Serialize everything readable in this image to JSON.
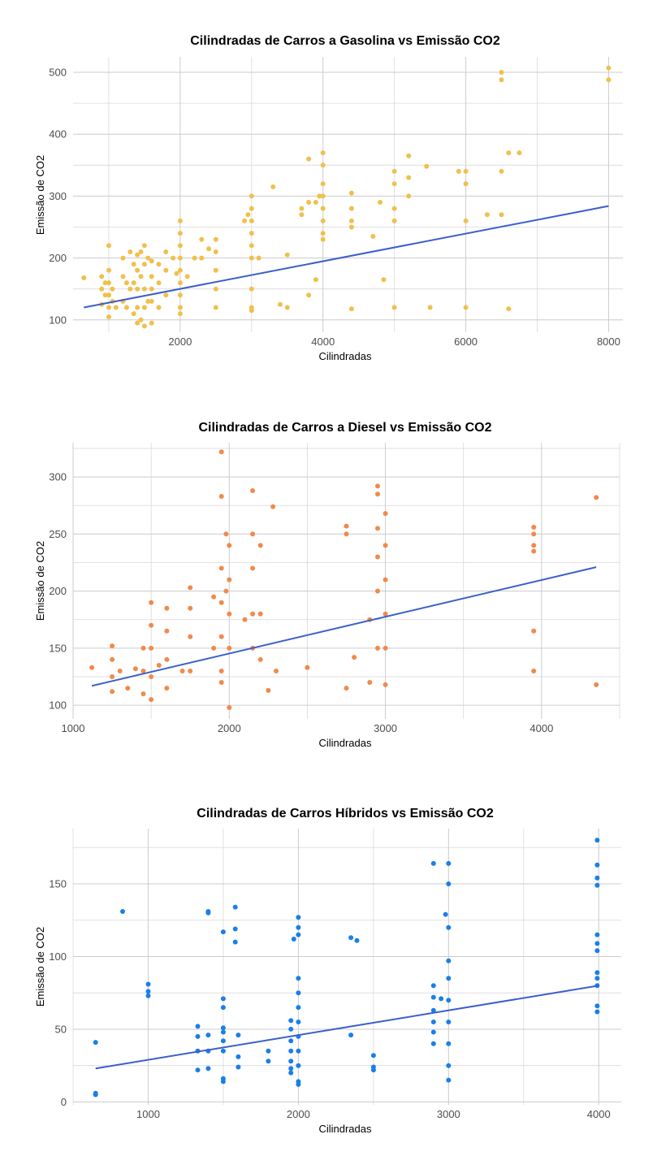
{
  "chart_data": [
    {
      "type": "scatter",
      "title": "Cilindradas de Carros a Gasolina vs Emissão CO2",
      "xlabel": "Cilindradas",
      "ylabel": "Emissão de CO2",
      "xlim": [
        500,
        8200
      ],
      "ylim": [
        80,
        525
      ],
      "xticks": [
        2000,
        4000,
        6000,
        8000
      ],
      "yticks": [
        100,
        200,
        300,
        400,
        500
      ],
      "grid": true,
      "point_color": "#f0c04c",
      "line_color": "#3a5fcd",
      "trend": {
        "x": [
          650,
          8000
        ],
        "y": [
          120,
          284
        ]
      },
      "series": [
        {
          "x": [
            650,
            900,
            900,
            900,
            950,
            950,
            1000,
            1000,
            1000,
            1000,
            1000,
            1000,
            1050,
            1050,
            1100,
            1200,
            1200,
            1200,
            1250,
            1250,
            1300,
            1300,
            1350,
            1350,
            1350,
            1400,
            1400,
            1400,
            1400,
            1400,
            1450,
            1450,
            1450,
            1500,
            1500,
            1500,
            1500,
            1500,
            1550,
            1550,
            1600,
            1600,
            1600,
            1600,
            1600,
            1700,
            1700,
            1700,
            1800,
            1800,
            1800,
            1900,
            1950,
            2000,
            2000,
            2000,
            2000,
            2000,
            2000,
            2000,
            2000,
            2000,
            2100,
            2200,
            2300,
            2300,
            2400,
            2500,
            2500,
            2500,
            2500,
            2500,
            2900,
            2950,
            3000,
            3000,
            3000,
            3000,
            3000,
            3000,
            3000,
            3000,
            3000,
            3100,
            3300,
            3400,
            3500,
            3500,
            3700,
            3700,
            3800,
            3800,
            3800,
            3900,
            3900,
            3950,
            4000,
            4000,
            4000,
            4000,
            4000,
            4000,
            4000,
            4000,
            4400,
            4400,
            4400,
            4400,
            4400,
            4700,
            4800,
            4850,
            5000,
            5000,
            5000,
            5000,
            5000,
            5200,
            5200,
            5200,
            5450,
            5500,
            5900,
            6000,
            6000,
            6000,
            6000,
            6300,
            6500,
            6500,
            6500,
            6500,
            6600,
            6600,
            6750,
            8000,
            8000
          ],
          "y": [
            168,
            170,
            150,
            125,
            160,
            140,
            220,
            180,
            160,
            140,
            120,
            105,
            150,
            130,
            120,
            200,
            170,
            130,
            160,
            120,
            210,
            150,
            190,
            160,
            110,
            205,
            180,
            150,
            120,
            95,
            210,
            170,
            100,
            220,
            190,
            150,
            120,
            90,
            200,
            130,
            195,
            170,
            150,
            130,
            95,
            190,
            160,
            120,
            210,
            180,
            140,
            200,
            175,
            260,
            240,
            220,
            200,
            180,
            160,
            140,
            120,
            110,
            170,
            200,
            230,
            200,
            215,
            230,
            210,
            180,
            150,
            120,
            260,
            270,
            300,
            280,
            260,
            240,
            220,
            200,
            150,
            120,
            115,
            200,
            315,
            125,
            205,
            120,
            280,
            270,
            360,
            290,
            140,
            290,
            165,
            300,
            370,
            350,
            320,
            300,
            280,
            260,
            240,
            230,
            305,
            280,
            260,
            250,
            118,
            235,
            290,
            165,
            340,
            320,
            280,
            260,
            120,
            365,
            330,
            300,
            348,
            120,
            340,
            340,
            320,
            260,
            120,
            270,
            500,
            488,
            340,
            270,
            370,
            118,
            370,
            507,
            488
          ]
        }
      ]
    },
    {
      "type": "scatter",
      "title": "Cilindradas de Carros a Diesel vs Emissão CO2",
      "xlabel": "Cilindradas",
      "ylabel": "Emissão de CO2",
      "xlim": [
        1000,
        4500
      ],
      "ylim": [
        88,
        330
      ],
      "xticks": [
        1000,
        2000,
        3000,
        4000
      ],
      "yticks": [
        100,
        150,
        200,
        250,
        300
      ],
      "grid": true,
      "point_color": "#f08a4b",
      "line_color": "#3a5fcd",
      "trend": {
        "x": [
          1120,
          4350
        ],
        "y": [
          117,
          221
        ]
      },
      "series": [
        {
          "x": [
            1120,
            1250,
            1250,
            1250,
            1250,
            1300,
            1350,
            1400,
            1450,
            1450,
            1450,
            1500,
            1500,
            1500,
            1500,
            1500,
            1550,
            1600,
            1600,
            1600,
            1600,
            1700,
            1750,
            1750,
            1750,
            1750,
            1900,
            1900,
            1950,
            1950,
            1950,
            1950,
            1950,
            1950,
            1950,
            1980,
            1980,
            2000,
            2000,
            2000,
            2000,
            2000,
            2100,
            2150,
            2150,
            2150,
            2150,
            2150,
            2200,
            2200,
            2200,
            2250,
            2280,
            2300,
            2500,
            2750,
            2750,
            2750,
            2800,
            2900,
            2900,
            2950,
            2950,
            2950,
            2950,
            2950,
            2950,
            3000,
            3000,
            3000,
            3000,
            3000,
            3000,
            3950,
            3950,
            3950,
            3950,
            3950,
            3950,
            4350,
            4350
          ],
          "y": [
            133,
            152,
            140,
            125,
            112,
            130,
            115,
            132,
            150,
            130,
            110,
            190,
            170,
            150,
            125,
            105,
            135,
            185,
            165,
            140,
            115,
            130,
            203,
            185,
            160,
            130,
            195,
            150,
            322,
            283,
            220,
            190,
            160,
            130,
            120,
            250,
            200,
            240,
            210,
            180,
            150,
            98,
            175,
            288,
            250,
            220,
            180,
            150,
            240,
            180,
            140,
            113,
            274,
            130,
            133,
            257,
            250,
            115,
            142,
            120,
            175,
            292,
            285,
            255,
            230,
            200,
            150,
            268,
            240,
            210,
            180,
            150,
            118,
            256,
            250,
            240,
            235,
            165,
            130,
            282,
            118
          ]
        }
      ]
    },
    {
      "type": "scatter",
      "title": "Cilindradas de Carros Híbridos vs Emissão CO2",
      "xlabel": "Cilindradas",
      "ylabel": "Emissão de CO2",
      "xlim": [
        500,
        4150
      ],
      "ylim": [
        -2,
        188
      ],
      "xticks": [
        1000,
        2000,
        3000,
        4000
      ],
      "yticks": [
        0,
        50,
        100,
        150
      ],
      "grid": true,
      "point_color": "#1a7fe8",
      "line_color": "#3a5fcd",
      "trend": {
        "x": [
          650,
          4000
        ],
        "y": [
          23,
          80
        ]
      },
      "series": [
        {
          "x": [
            650,
            650,
            650,
            830,
            1000,
            1000,
            1000,
            1330,
            1330,
            1330,
            1330,
            1400,
            1400,
            1400,
            1400,
            1400,
            1500,
            1500,
            1500,
            1500,
            1500,
            1500,
            1500,
            1500,
            1500,
            1580,
            1580,
            1580,
            1600,
            1600,
            1600,
            1800,
            1800,
            1950,
            1950,
            1950,
            1950,
            1950,
            1950,
            1950,
            1970,
            2000,
            2000,
            2000,
            2000,
            2000,
            2000,
            2000,
            2000,
            2000,
            2000,
            2000,
            2000,
            2350,
            2350,
            2390,
            2500,
            2500,
            2500,
            2900,
            2900,
            2900,
            2900,
            2900,
            2900,
            2900,
            2950,
            2980,
            3000,
            3000,
            3000,
            3000,
            3000,
            3000,
            3000,
            3000,
            3000,
            3000,
            3990,
            3990,
            3990,
            3990,
            3990,
            3990,
            3990,
            3990,
            3990,
            3990,
            3990,
            3990
          ],
          "y": [
            41,
            6,
            5,
            131,
            81,
            76,
            73,
            52,
            45,
            35,
            22,
            131,
            130,
            46,
            35,
            23,
            117,
            71,
            65,
            51,
            48,
            42,
            35,
            16,
            14,
            134,
            119,
            110,
            46,
            31,
            24,
            35,
            28,
            56,
            50,
            42,
            35,
            28,
            23,
            20,
            112,
            127,
            120,
            115,
            85,
            75,
            65,
            55,
            45,
            35,
            25,
            14,
            12,
            113,
            46,
            111,
            32,
            24,
            22,
            164,
            80,
            72,
            63,
            55,
            48,
            40,
            71,
            129,
            164,
            150,
            120,
            97,
            85,
            70,
            55,
            40,
            25,
            15,
            180,
            163,
            154,
            149,
            115,
            109,
            104,
            89,
            85,
            80,
            66,
            62
          ]
        }
      ]
    }
  ]
}
